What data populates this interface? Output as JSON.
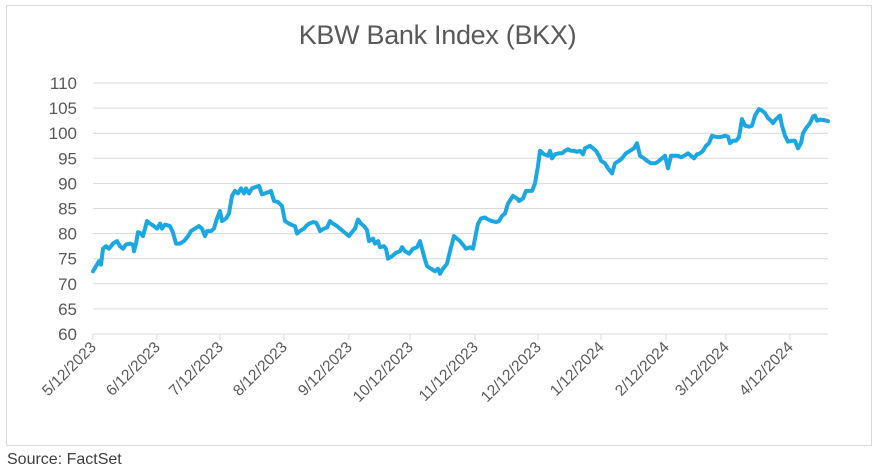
{
  "chart": {
    "title": "KBW Bank Index (BKX)",
    "source": "Source: FactSet",
    "line_color": "#1aa7e2",
    "grid_color": "#d9d9d9"
  },
  "chart_data": {
    "type": "line",
    "title": "KBW Bank Index (BKX)",
    "xlabel": "",
    "ylabel": "",
    "ylim": [
      60,
      110
    ],
    "yticks": [
      60,
      65,
      70,
      75,
      80,
      85,
      90,
      95,
      100,
      105,
      110
    ],
    "xticks": [
      "5/12/2023",
      "6/12/2023",
      "7/12/2023",
      "8/12/2023",
      "9/12/2023",
      "10/12/2023",
      "11/12/2023",
      "12/12/2023",
      "1/12/2024",
      "2/12/2024",
      "3/12/2024",
      "4/12/2024"
    ],
    "grid": "horizontal",
    "legend": "none",
    "annotation": "Source: FactSet",
    "series": [
      {
        "name": "KBW Bank Index (BKX)",
        "note": "x is approximate pixel position along time axis (93 = 5/12/2023, 790 = 4/12/2024, end ~828); values read from gridlines",
        "points": [
          [
            93,
            72.5
          ],
          [
            96,
            73.5
          ],
          [
            99,
            74.5
          ],
          [
            101,
            73.8
          ],
          [
            103,
            77
          ],
          [
            106,
            77.5
          ],
          [
            109,
            77
          ],
          [
            113,
            78
          ],
          [
            117,
            78.5
          ],
          [
            120,
            77.5
          ],
          [
            123,
            77
          ],
          [
            126,
            77.8
          ],
          [
            130,
            78
          ],
          [
            133,
            77.8
          ],
          [
            134,
            76.5
          ],
          [
            136,
            78
          ],
          [
            138,
            80.3
          ],
          [
            141,
            80
          ],
          [
            143,
            79.5
          ],
          [
            147,
            82.5
          ],
          [
            150,
            82
          ],
          [
            154,
            81.5
          ],
          [
            157,
            81
          ],
          [
            160,
            82
          ],
          [
            162,
            81
          ],
          [
            165,
            81.8
          ],
          [
            170,
            81.5
          ],
          [
            173,
            80.2
          ],
          [
            176,
            78
          ],
          [
            180,
            78
          ],
          [
            184,
            78.5
          ],
          [
            188,
            79.5
          ],
          [
            191,
            80.5
          ],
          [
            195,
            81
          ],
          [
            199,
            81.5
          ],
          [
            202,
            81
          ],
          [
            205,
            79.5
          ],
          [
            207,
            80.5
          ],
          [
            211,
            80.5
          ],
          [
            214,
            81
          ],
          [
            217,
            83
          ],
          [
            220,
            84.5
          ],
          [
            222,
            82.5
          ],
          [
            226,
            83
          ],
          [
            229,
            84
          ],
          [
            232,
            87.5
          ],
          [
            235,
            88.5
          ],
          [
            238,
            88
          ],
          [
            241,
            89
          ],
          [
            244,
            88
          ],
          [
            246,
            89
          ],
          [
            249,
            88
          ],
          [
            252,
            89
          ],
          [
            256,
            89.3
          ],
          [
            259,
            89.5
          ],
          [
            262,
            87.8
          ],
          [
            265,
            88
          ],
          [
            269,
            88.3
          ],
          [
            271,
            88.5
          ],
          [
            274,
            86.5
          ],
          [
            278,
            86.3
          ],
          [
            282,
            85.5
          ],
          [
            285,
            82.5
          ],
          [
            289,
            82
          ],
          [
            292,
            81.7
          ],
          [
            295,
            81.5
          ],
          [
            297,
            80
          ],
          [
            300,
            80.5
          ],
          [
            304,
            81
          ],
          [
            306,
            81.5
          ],
          [
            309,
            82
          ],
          [
            313,
            82.3
          ],
          [
            316,
            82.2
          ],
          [
            318,
            81.5
          ],
          [
            320,
            80.5
          ],
          [
            324,
            81
          ],
          [
            327,
            81.2
          ],
          [
            330,
            82.5
          ],
          [
            333,
            82
          ],
          [
            337,
            81.5
          ],
          [
            340,
            81
          ],
          [
            343,
            80.5
          ],
          [
            346,
            80
          ],
          [
            349,
            79.5
          ],
          [
            352,
            80.3
          ],
          [
            355,
            81
          ],
          [
            358,
            82.8
          ],
          [
            361,
            82
          ],
          [
            364,
            81.5
          ],
          [
            367,
            80.7
          ],
          [
            369,
            78.5
          ],
          [
            373,
            79
          ],
          [
            375,
            78
          ],
          [
            378,
            78.5
          ],
          [
            380,
            77.3
          ],
          [
            384,
            77.5
          ],
          [
            386,
            77
          ],
          [
            388,
            75
          ],
          [
            392,
            75.5
          ],
          [
            396,
            76.2
          ],
          [
            400,
            76.5
          ],
          [
            402,
            77.3
          ],
          [
            405,
            76.5
          ],
          [
            409,
            76
          ],
          [
            413,
            77
          ],
          [
            417,
            77.3
          ],
          [
            420,
            78.5
          ],
          [
            424,
            75.5
          ],
          [
            427,
            73.5
          ],
          [
            431,
            73
          ],
          [
            435,
            72.5
          ],
          [
            438,
            73
          ],
          [
            440,
            72
          ],
          [
            443,
            73
          ],
          [
            447,
            74
          ],
          [
            450,
            76.5
          ],
          [
            454,
            79.5
          ],
          [
            460,
            78.5
          ],
          [
            464,
            77.5
          ],
          [
            466,
            77
          ],
          [
            470,
            77.3
          ],
          [
            473,
            77
          ],
          [
            475,
            79
          ],
          [
            478,
            82
          ],
          [
            481,
            83
          ],
          [
            485,
            83.2
          ],
          [
            488,
            82.8
          ],
          [
            492,
            82.5
          ],
          [
            496,
            82.3
          ],
          [
            499,
            82.5
          ],
          [
            502,
            83.5
          ],
          [
            505,
            84
          ],
          [
            508,
            86
          ],
          [
            513,
            87.5
          ],
          [
            517,
            87
          ],
          [
            519,
            86.5
          ],
          [
            523,
            87
          ],
          [
            526,
            88.5
          ],
          [
            529,
            88.5
          ],
          [
            532,
            88.5
          ],
          [
            535,
            90
          ],
          [
            538,
            93.5
          ],
          [
            540,
            96.5
          ],
          [
            544,
            95.8
          ],
          [
            548,
            95.5
          ],
          [
            550,
            96.5
          ],
          [
            552,
            95
          ],
          [
            555,
            95.8
          ],
          [
            559,
            96
          ],
          [
            562,
            96
          ],
          [
            565,
            96.5
          ],
          [
            568,
            96.8
          ],
          [
            571,
            96.5
          ],
          [
            574,
            96.5
          ],
          [
            577,
            96.3
          ],
          [
            580,
            96.5
          ],
          [
            583,
            95.8
          ],
          [
            585,
            97
          ],
          [
            590,
            97.5
          ],
          [
            593,
            97
          ],
          [
            596,
            96.5
          ],
          [
            599,
            95.5
          ],
          [
            601,
            94.5
          ],
          [
            605,
            94
          ],
          [
            608,
            93
          ],
          [
            612,
            92
          ],
          [
            615,
            94
          ],
          [
            619,
            94.5
          ],
          [
            622,
            95
          ],
          [
            626,
            96
          ],
          [
            630,
            96.5
          ],
          [
            634,
            97
          ],
          [
            637,
            98
          ],
          [
            640,
            95.5
          ],
          [
            644,
            95
          ],
          [
            647,
            94.5
          ],
          [
            651,
            94
          ],
          [
            655,
            94
          ],
          [
            658,
            94.3
          ],
          [
            662,
            95
          ],
          [
            665,
            95.5
          ],
          [
            668,
            93
          ],
          [
            671,
            95.5
          ],
          [
            674,
            95.5
          ],
          [
            678,
            95.5
          ],
          [
            681,
            95.2
          ],
          [
            684,
            95.5
          ],
          [
            688,
            96
          ],
          [
            691,
            95.5
          ],
          [
            694,
            95
          ],
          [
            697,
            95.8
          ],
          [
            700,
            96
          ],
          [
            703,
            96.5
          ],
          [
            706,
            97.5
          ],
          [
            709,
            98
          ],
          [
            712,
            99.5
          ],
          [
            715,
            99.3
          ],
          [
            719,
            99.2
          ],
          [
            722,
            99.3
          ],
          [
            725,
            99.5
          ],
          [
            728,
            99.3
          ],
          [
            730,
            98
          ],
          [
            733,
            98.5
          ],
          [
            736,
            98.5
          ],
          [
            739,
            99.2
          ],
          [
            742,
            102.8
          ],
          [
            745,
            101.5
          ],
          [
            749,
            101.3
          ],
          [
            752,
            101.5
          ],
          [
            755,
            103.5
          ],
          [
            759,
            104.8
          ],
          [
            762,
            104.5
          ],
          [
            765,
            104
          ],
          [
            768,
            103
          ],
          [
            771,
            102.5
          ],
          [
            773,
            102
          ],
          [
            776,
            102.8
          ],
          [
            780,
            103.5
          ],
          [
            782,
            101.5
          ],
          [
            785,
            99.5
          ],
          [
            788,
            98.3
          ],
          [
            792,
            98.5
          ],
          [
            795,
            98.5
          ],
          [
            798,
            97
          ],
          [
            801,
            98
          ],
          [
            803,
            100
          ],
          [
            806,
            101
          ],
          [
            810,
            102
          ],
          [
            813,
            103.3
          ],
          [
            815,
            103.5
          ],
          [
            817,
            102.5
          ],
          [
            820,
            102.7
          ],
          [
            824,
            102.6
          ],
          [
            828,
            102.4
          ]
        ]
      }
    ]
  }
}
